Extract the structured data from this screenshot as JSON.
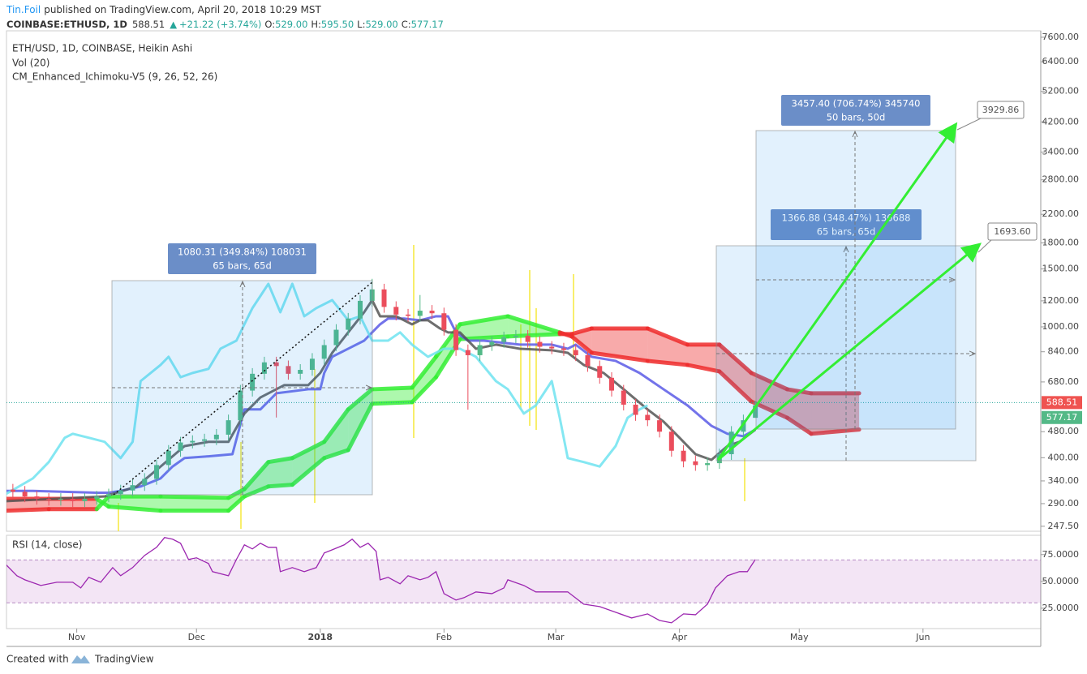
{
  "header": {
    "author": "Tin.Foil",
    "published": "published on TradingView.com, April 20, 2018 10:29 MST"
  },
  "quote": {
    "symbol": "COINBASE:ETHUSD, 1D",
    "price": "588.51",
    "change": "+21.22 (+3.74%)",
    "ohlc": [
      {
        "label": "O:",
        "value": "529.00"
      },
      {
        "label": "H:",
        "value": "595.50"
      },
      {
        "label": "L:",
        "value": "529.00"
      },
      {
        "label": "C:",
        "value": "577.17"
      }
    ]
  },
  "chart_data": [
    {
      "type": "candlestick",
      "title": "ETH/USD, 1D, COINBASE, Heikin Ashi",
      "indicators": [
        "Vol (20)",
        "CM_Enhanced_Ichimoku-V5 (9, 26, 52, 26)"
      ],
      "log_scale": true,
      "xlim": [
        2.4,
        261.5
      ],
      "xticks": [
        {
          "value": 20,
          "label": "Nov"
        },
        {
          "value": 50,
          "label": "Dec"
        },
        {
          "value": 81,
          "label": "2018"
        },
        {
          "value": 112,
          "label": "Feb"
        },
        {
          "value": 140,
          "label": "Mar"
        },
        {
          "value": 171,
          "label": "Apr"
        },
        {
          "value": 201,
          "label": "May"
        },
        {
          "value": 232,
          "label": "Jun"
        }
      ],
      "ylim": [
        239,
        7950
      ],
      "yticks": [
        {
          "value": 247.5,
          "label": "247.50"
        },
        {
          "value": 290,
          "label": "290.00"
        },
        {
          "value": 340,
          "label": "340.00"
        },
        {
          "value": 400,
          "label": "400.00"
        },
        {
          "value": 480,
          "label": "480.00"
        },
        {
          "value": 680,
          "label": "680.00"
        },
        {
          "value": 840,
          "label": "840.00"
        },
        {
          "value": 1000,
          "label": "1000.00"
        },
        {
          "value": 1200,
          "label": "1200.00"
        },
        {
          "value": 1500,
          "label": "1500.00"
        },
        {
          "value": 1800,
          "label": "1800.00"
        },
        {
          "value": 2200,
          "label": "2200.00"
        },
        {
          "value": 2800,
          "label": "2800.00"
        },
        {
          "value": 3400,
          "label": "3400.00"
        },
        {
          "value": 4200,
          "label": "4200.00"
        },
        {
          "value": 5200,
          "label": "5200.00"
        },
        {
          "value": 6400,
          "label": "6400.00"
        },
        {
          "value": 7600,
          "label": "7600.00"
        }
      ],
      "up_color": "#53b987",
      "down_color": "#eb4d5c",
      "candles": {
        "x": [
          4,
          7,
          10,
          13,
          16,
          19,
          22,
          25,
          28,
          31,
          34,
          37,
          40,
          43,
          46,
          49,
          52,
          55,
          58,
          61,
          64,
          67,
          70,
          73,
          76,
          79,
          82,
          85,
          88,
          91,
          94,
          97,
          100,
          103,
          106,
          109,
          112,
          115,
          118,
          121,
          124,
          127,
          130,
          133,
          136,
          139,
          142,
          145,
          148,
          151,
          154,
          157,
          160,
          163,
          166,
          169,
          172,
          175,
          178,
          181,
          184,
          187,
          190
        ],
        "open": [
          320,
          315,
          305,
          300,
          298,
          300,
          295,
          300,
          305,
          310,
          318,
          330,
          345,
          380,
          420,
          445,
          450,
          455,
          470,
          520,
          640,
          720,
          780,
          760,
          720,
          740,
          800,
          880,
          980,
          1060,
          1200,
          1300,
          1150,
          1090,
          1080,
          1120,
          1100,
          980,
          850,
          820,
          880,
          900,
          930,
          940,
          900,
          870,
          860,
          850,
          820,
          760,
          700,
          640,
          580,
          540,
          520,
          480,
          420,
          390,
          380,
          385,
          410,
          480,
          529
        ],
        "high": [
          333,
          328,
          317,
          312,
          312,
          312,
          312,
          317,
          322,
          331,
          343,
          359,
          395,
          437,
          463,
          468,
          473,
          489,
          541,
          666,
          749,
          811,
          811,
          790,
          770,
          832,
          915,
          1019,
          1102,
          1248,
          1400,
          1352,
          1196,
          1134,
          1250,
          1165,
          1144,
          1019,
          884,
          915,
          936,
          967,
          978,
          978,
          936,
          905,
          894,
          884,
          853,
          790,
          728,
          666,
          603,
          562,
          541,
          499,
          437,
          406,
          400,
          426,
          499,
          541,
          595.5
        ],
        "low": [
          302,
          293,
          288,
          286,
          286,
          283,
          283,
          288,
          293,
          298,
          305,
          317,
          331,
          365,
          403,
          427,
          432,
          437,
          451,
          499,
          614,
          691,
          530,
          691,
          691,
          710,
          768,
          845,
          941,
          1018,
          1152,
          1104,
          1046,
          1037,
          1037,
          1056,
          941,
          816,
          560,
          787,
          845,
          864,
          893,
          864,
          835,
          826,
          816,
          787,
          730,
          672,
          614,
          557,
          518,
          499,
          461,
          403,
          374,
          365,
          365,
          370,
          394,
          461,
          529
        ],
        "close": [
          315,
          305,
          300,
          298,
          300,
          295,
          300,
          305,
          310,
          318,
          330,
          345,
          380,
          420,
          445,
          450,
          455,
          470,
          520,
          640,
          720,
          780,
          760,
          720,
          740,
          800,
          880,
          980,
          1060,
          1200,
          1300,
          1150,
          1090,
          1080,
          1120,
          1100,
          980,
          850,
          820,
          880,
          900,
          930,
          940,
          900,
          870,
          860,
          850,
          820,
          760,
          700,
          640,
          580,
          540,
          520,
          480,
          420,
          390,
          380,
          385,
          410,
          480,
          520,
          577.17
        ]
      },
      "last_price": 588.51,
      "last_price_color": "#ef5350",
      "cloud": {
        "up_color": "#33ee33",
        "down_color": "#ee2b2b",
        "x": [
          2,
          13,
          25,
          28,
          41,
          58,
          62,
          68,
          74,
          82,
          88,
          94,
          104,
          110,
          116,
          128,
          141,
          144,
          149,
          163,
          173,
          181,
          189,
          198,
          204,
          216
        ],
        "span_a": [
          276,
          279,
          279,
          305,
          305,
          302,
          321,
          388,
          399,
          447,
          561,
          646,
          653,
          811,
          1018,
          1077,
          962,
          935,
          834,
          788,
          766,
          732,
          593,
          529,
          473,
          487
        ],
        "span_b": [
          300,
          300,
          300,
          284,
          276,
          276,
          305,
          327,
          331,
          399,
          422,
          584,
          590,
          703,
          918,
          935,
          951,
          951,
          989,
          989,
          883,
          883,
          724,
          646,
          628,
          628
        ]
      },
      "series": [
        {
          "color": "#5a5ae6",
          "x": [
            2,
            9,
            25,
            28,
            31,
            36,
            41,
            44,
            47,
            53,
            59,
            62,
            66,
            70,
            78,
            81,
            82,
            84,
            88,
            92,
            94,
            96,
            98,
            102,
            106,
            110,
            113,
            115,
            118,
            122,
            131,
            139,
            143,
            145,
            149,
            155,
            161,
            167,
            173,
            179,
            183,
            187,
            190
          ],
          "values": [
            317,
            317,
            313,
            313,
            317,
            327,
            346,
            376,
            399,
            404,
            410,
            561,
            561,
            628,
            646,
            646,
            724,
            811,
            858,
            908,
            962,
            1018,
            1060,
            1060,
            1047,
            1077,
            1077,
            962,
            908,
            908,
            883,
            883,
            858,
            883,
            811,
            788,
            724,
            646,
            577,
            500,
            473,
            465,
            487
          ]
        },
        {
          "color": "#555555",
          "x": [
            2,
            27,
            35,
            41,
            47,
            53,
            58,
            62,
            66,
            72,
            78,
            81,
            84,
            88,
            92,
            94,
            96,
            100,
            104,
            106,
            108,
            111,
            113,
            116,
            120,
            125,
            131,
            139,
            143,
            147,
            152,
            157,
            163,
            167,
            171,
            175,
            179,
            183,
            186,
            190
          ],
          "values": [
            295,
            305,
            327,
            376,
            434,
            447,
            447,
            545,
            610,
            665,
            665,
            724,
            834,
            962,
            1108,
            1206,
            1077,
            1077,
            1018,
            1047,
            1047,
            989,
            962,
            962,
            858,
            883,
            858,
            849,
            834,
            766,
            724,
            646,
            561,
            515,
            460,
            410,
            394,
            434,
            447,
            487
          ]
        },
        {
          "color": "#6fe3f0",
          "x": [
            2,
            9,
            13,
            17,
            19,
            23,
            27,
            31,
            34,
            36,
            41,
            43,
            46,
            49,
            53,
            56,
            60,
            62,
            64,
            66,
            68,
            71,
            74,
            77,
            80,
            84,
            88,
            91,
            94,
            98,
            101,
            104,
            108,
            112,
            116,
            120,
            125,
            128,
            132,
            135,
            139,
            141,
            143,
            147,
            151,
            155,
            158,
            161,
            163
          ],
          "values": [
            309,
            346,
            388,
            460,
            473,
            460,
            447,
            399,
            447,
            684,
            766,
            811,
            703,
            724,
            745,
            858,
            908,
            1018,
            1140,
            1241,
            1352,
            1108,
            1352,
            1077,
            1140,
            1206,
            1047,
            1077,
            908,
            908,
            962,
            883,
            811,
            858,
            858,
            811,
            684,
            646,
            545,
            577,
            684,
            529,
            399,
            388,
            376,
            434,
            529,
            561,
            577
          ]
        }
      ],
      "annotations": [
        {
          "text": "1080.31 (349.84%) 108031",
          "subtext": "65 bars, 65d"
        },
        {
          "text": "1366.88 (348.47%) 136688",
          "subtext": "65 bars, 65d"
        },
        {
          "text": "3457.40 (706.74%) 345740",
          "subtext": "50 bars, 50d"
        }
      ],
      "callouts": [
        "3929.86",
        "1693.60"
      ]
    },
    {
      "type": "line",
      "title": "RSI (14, close)",
      "color": "#9c27b0",
      "xlim": [
        2.4,
        261.5
      ],
      "ylim": [
        6,
        93
      ],
      "band": [
        30,
        70
      ],
      "yticks": [
        {
          "value": 25,
          "label": "25.0000"
        },
        {
          "value": 50,
          "label": "50.0000"
        },
        {
          "value": 75,
          "label": "75.0000"
        }
      ],
      "x": [
        2,
        5,
        7,
        11,
        15,
        19,
        21,
        23,
        26,
        29,
        31,
        34,
        37,
        40,
        42,
        44,
        46,
        48,
        50,
        53,
        54,
        58,
        60,
        62,
        64,
        66,
        68,
        70,
        71,
        74,
        77,
        80,
        82,
        84,
        87,
        89,
        91,
        93,
        95,
        96,
        98,
        101,
        103,
        106,
        108,
        110,
        112,
        115,
        117,
        120,
        124,
        127,
        128,
        132,
        135,
        139,
        143,
        147,
        151,
        155,
        159,
        163,
        166,
        169,
        172,
        175,
        178,
        180,
        183,
        186,
        188,
        190
      ],
      "values": [
        66.7,
        55.3,
        51.5,
        46.2,
        49.2,
        49.2,
        43.9,
        53.8,
        49.2,
        62.9,
        55.3,
        62.9,
        74.2,
        81.8,
        90.9,
        89.4,
        85.6,
        70.5,
        72,
        66.7,
        59.1,
        55.3,
        70.5,
        84.1,
        80.3,
        85.6,
        81.8,
        81.8,
        59.1,
        62.9,
        59.1,
        62.9,
        76.5,
        79.5,
        84.1,
        89.4,
        81.8,
        85.6,
        78,
        51.5,
        53.8,
        47.7,
        55.3,
        51.5,
        53.8,
        59.1,
        38.6,
        32.6,
        34.8,
        40.2,
        38.6,
        43.9,
        51.5,
        46.2,
        40.2,
        40.2,
        40.2,
        28.8,
        26.5,
        21.2,
        15.9,
        19.7,
        13.6,
        11.4,
        19.7,
        18.9,
        28.8,
        43.9,
        55.3,
        59.1,
        59.1,
        70.5
      ]
    }
  ],
  "footer": {
    "created": "Created with",
    "brand": "TradingView"
  }
}
